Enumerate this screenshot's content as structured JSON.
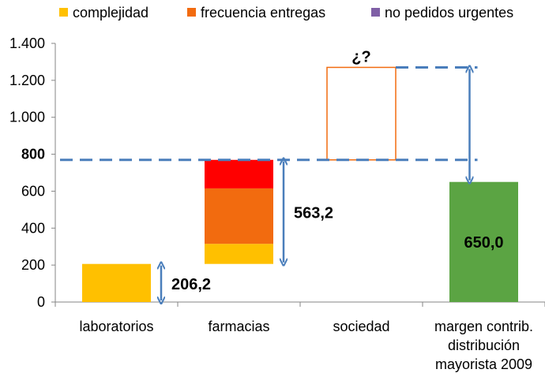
{
  "chart_data": {
    "type": "bar",
    "subtype": "waterfall-stacked",
    "legend": {
      "placement": "top",
      "items": [
        {
          "name": "complejidad",
          "color": "#FFC000"
        },
        {
          "name": "frecuencia entregas",
          "color": "#F26B0F"
        },
        {
          "name": "no pedidos urgentes",
          "color": "#7F5FA6"
        }
      ]
    },
    "categories": [
      "laboratorios",
      "farmacias",
      "sociedad",
      "margen contrib. distribución mayorista 2009"
    ],
    "category_lines": [
      [
        "laboratorios"
      ],
      [
        "farmacias"
      ],
      [
        "sociedad"
      ],
      [
        "margen contrib.",
        "distribución",
        "mayorista 2009"
      ]
    ],
    "ylim": [
      0,
      1400
    ],
    "yticks": [
      {
        "value": 0,
        "label": "0"
      },
      {
        "value": 200,
        "label": "200"
      },
      {
        "value": 400,
        "label": "400"
      },
      {
        "value": 600,
        "label": "600"
      },
      {
        "value": 800,
        "label": "800",
        "bold": true
      },
      {
        "value": 1000,
        "label": "1.000"
      },
      {
        "value": 1200,
        "label": "1.200"
      },
      {
        "value": 1400,
        "label": "1.400"
      }
    ],
    "grid": false,
    "bars": [
      {
        "category": 0,
        "segments": [
          {
            "from": 0,
            "to": 206.2,
            "color": "#FFC000"
          }
        ]
      },
      {
        "category": 1,
        "segments": [
          {
            "from": 206.2,
            "to": 315,
            "color": "#FFC000"
          },
          {
            "from": 315,
            "to": 615,
            "color": "#F26B0F"
          },
          {
            "from": 615,
            "to": 769.4,
            "color": "#FF0000"
          }
        ]
      },
      {
        "category": 2,
        "segments": [
          {
            "from": 769.4,
            "to": 1270,
            "color": "none",
            "stroke": "#F26B0F"
          }
        ]
      },
      {
        "category": 3,
        "segments": [
          {
            "from": 0,
            "to": 650.0,
            "color": "#5BA443"
          }
        ]
      }
    ],
    "dashed_lines": [
      {
        "value": 769.4,
        "from_category": 0,
        "to_category": 3,
        "color": "#4A7EBB"
      },
      {
        "value": 1270,
        "from_category": 2,
        "to_category": 3,
        "color": "#4A7EBB"
      }
    ],
    "arrows": [
      {
        "category": 0,
        "from": 0,
        "to": 206.2,
        "label": "206,2"
      },
      {
        "category": 1,
        "from": 206.2,
        "to": 769.4,
        "label": "563,2"
      },
      {
        "category": 3,
        "from": 650.0,
        "to": 1270,
        "label": ""
      }
    ],
    "bar_labels": [
      {
        "category": 2,
        "value": 1270,
        "label": "¿?"
      },
      {
        "category": 3,
        "value": 650.0,
        "label": "650,0"
      }
    ]
  }
}
